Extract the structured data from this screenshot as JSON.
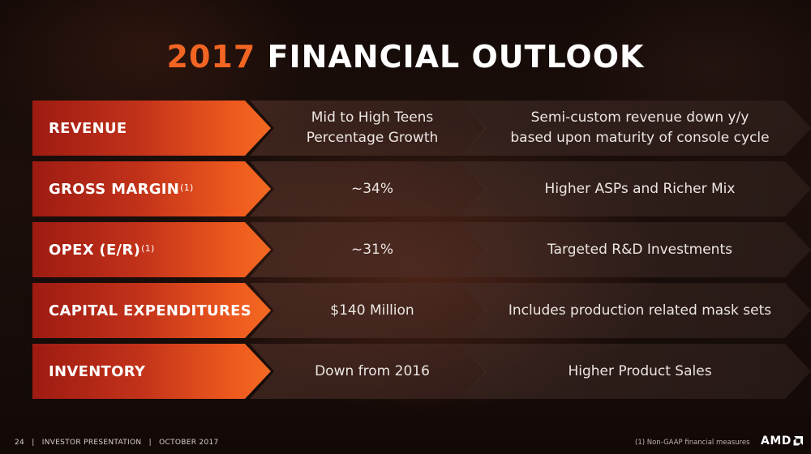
{
  "title": {
    "year": "2017",
    "text": "FINANCIAL OUTLOOK"
  },
  "rows": [
    {
      "label": "REVENUE",
      "sup": "",
      "value_line1": "Mid to High Teens",
      "value_line2": "Percentage Growth",
      "note_line1": "Semi-custom revenue down y/y",
      "note_line2": "based upon maturity of console cycle"
    },
    {
      "label": "GROSS MARGIN",
      "sup": "(1)",
      "value_line1": "~34%",
      "value_line2": "",
      "note_line1": "Higher ASPs and Richer Mix",
      "note_line2": ""
    },
    {
      "label": "OPEX (E/R)",
      "sup": "(1)",
      "value_line1": "~31%",
      "value_line2": "",
      "note_line1": "Targeted R&D Investments",
      "note_line2": ""
    },
    {
      "label": "CAPITAL EXPENDITURES",
      "sup": "",
      "value_line1": "$140 Million",
      "value_line2": "",
      "note_line1": "Includes production related mask sets",
      "note_line2": ""
    },
    {
      "label": "INVENTORY",
      "sup": "",
      "value_line1": "Down from 2016",
      "value_line2": "",
      "note_line1": "Higher Product Sales",
      "note_line2": ""
    }
  ],
  "footer": {
    "page_number": "24",
    "sep": "|",
    "presentation": "INVESTOR PRESENTATION",
    "date": "OCTOBER 2017",
    "footnote": "(1) Non-GAAP financial measures",
    "logo_text": "AMD"
  },
  "colors": {
    "accent": "#f26522",
    "label_gradient_start": "#9e1b12",
    "label_gradient_end": "#f26a22",
    "background": "#140a07"
  },
  "icons": {
    "logo_mark": "amd-arrow-logo"
  }
}
